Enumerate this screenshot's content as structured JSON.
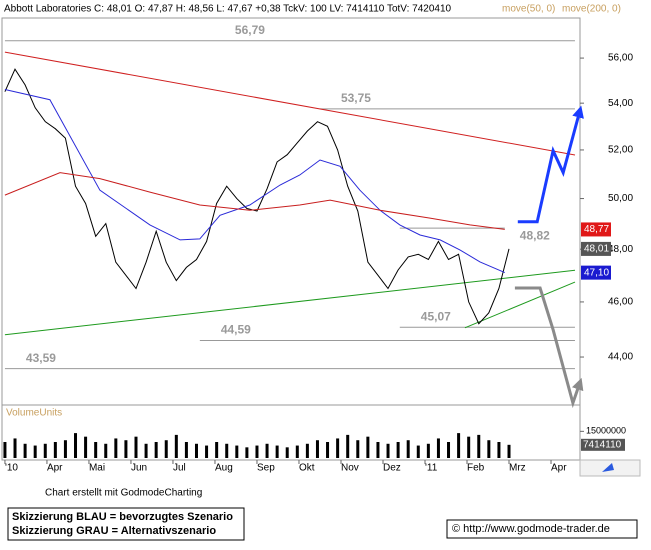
{
  "chart_data": {
    "type": "line",
    "title": "Abbott Laboratories C: 48,01 O: 47,87 H: 48,56 L: 47,67 +0,38 TckV: 100 LV: 7414110 TotV: 7420410",
    "log_scale": true,
    "xlim": [
      -0.07,
      13.69
    ],
    "xticks": [
      {
        "value": 0,
        "label": "'10"
      },
      {
        "value": 1,
        "label": "Apr"
      },
      {
        "value": 2,
        "label": "Mai"
      },
      {
        "value": 3,
        "label": "Jun"
      },
      {
        "value": 4,
        "label": "Jul"
      },
      {
        "value": 5,
        "label": "Aug"
      },
      {
        "value": 6,
        "label": "Sep"
      },
      {
        "value": 7,
        "label": "Okt"
      },
      {
        "value": 8,
        "label": "Nov"
      },
      {
        "value": 9,
        "label": "Dez"
      },
      {
        "value": 10,
        "label": "'11"
      },
      {
        "value": 11,
        "label": "Feb"
      },
      {
        "value": 12,
        "label": "Mrz"
      },
      {
        "value": 13,
        "label": "Apr"
      }
    ],
    "ylim": [
      42.33,
      57.84
    ],
    "yticks": [
      {
        "value": 44,
        "label": "44,00"
      },
      {
        "value": 46,
        "label": "46,00"
      },
      {
        "value": 48,
        "label": "48,00"
      },
      {
        "value": 50,
        "label": "50,00"
      },
      {
        "value": 52,
        "label": "52,00"
      },
      {
        "value": 54,
        "label": "54,00"
      },
      {
        "value": 56,
        "label": "56,00"
      }
    ],
    "series": [
      {
        "color": "#000000",
        "x": [
          0,
          0.24,
          0.48,
          0.72,
          0.96,
          1.2,
          1.44,
          1.68,
          1.92,
          2.16,
          2.4,
          2.64,
          2.88,
          3.12,
          3.36,
          3.6,
          3.84,
          4.08,
          4.32,
          4.56,
          4.8,
          5.04,
          5.28,
          5.52,
          5.76,
          6,
          6.24,
          6.48,
          6.72,
          6.96,
          7.2,
          7.44,
          7.68,
          7.92,
          8.16,
          8.4,
          8.64,
          8.88,
          9.12,
          9.36,
          9.6,
          9.84,
          10.08,
          10.32,
          10.56,
          10.8,
          11.04,
          11.28,
          11.52,
          11.76,
          12
        ],
        "values": [
          54.5,
          55.5,
          54.8,
          53.8,
          53.2,
          52.9,
          52.5,
          50.5,
          49.8,
          48.5,
          49.0,
          47.5,
          47.0,
          46.5,
          47.5,
          48.7,
          47.5,
          46.8,
          47.3,
          47.6,
          48.3,
          49.8,
          50.5,
          50.0,
          49.6,
          49.5,
          50.4,
          51.5,
          51.8,
          52.3,
          52.8,
          53.2,
          53.0,
          52.0,
          50.5,
          49.5,
          47.5,
          47.0,
          46.5,
          47.2,
          47.7,
          47.8,
          47.6,
          48.3,
          47.6,
          47.8,
          46.0,
          45.2,
          45.6,
          46.5,
          48.01
        ]
      },
      {
        "name": "move(50, 0)",
        "color": "#2a2ad8",
        "x": [
          0,
          1.07,
          2.26,
          3.45,
          4.17,
          4.64,
          5.12,
          5.83,
          6.55,
          7.02,
          7.5,
          7.98,
          8.45,
          8.93,
          9.4,
          9.88,
          10.36,
          10.83,
          11.31,
          11.9
        ],
        "values": [
          54.6,
          54.15,
          50.34,
          48.95,
          48.36,
          48.4,
          49.33,
          49.74,
          50.55,
          50.96,
          51.58,
          51.32,
          50.34,
          49.53,
          48.95,
          48.55,
          48.36,
          47.97,
          47.51,
          47.1
        ]
      },
      {
        "name": "move(200, 0)",
        "color": "#c81e1e",
        "x": [
          0,
          1.31,
          2.26,
          3.45,
          4.64,
          5.83,
          7.02,
          7.74,
          8.93,
          10.12,
          11.07,
          11.9
        ],
        "values": [
          50.14,
          51.06,
          50.81,
          50.26,
          49.74,
          49.53,
          49.74,
          49.94,
          49.53,
          49.22,
          48.95,
          48.77
        ]
      }
    ],
    "levels": [
      {
        "value": 56.79,
        "label": "56,79",
        "x": [
          0,
          13.57
        ]
      },
      {
        "value": 53.75,
        "label": "53,75",
        "x": [
          7.5,
          13.57
        ]
      },
      {
        "value": 48.82,
        "label": "48,82",
        "x": [
          9.4,
          11.9
        ]
      },
      {
        "value": 45.07,
        "label": "45,07",
        "x": [
          9.4,
          13.57
        ]
      },
      {
        "value": 44.59,
        "label": "44,59",
        "x": [
          4.64,
          13.57
        ]
      },
      {
        "value": 43.59,
        "label": "43,59",
        "x": [
          0,
          13.57
        ]
      }
    ],
    "trendlines": [
      {
        "color": "#d02020",
        "x": [
          0,
          13.57
        ],
        "values": [
          56.27,
          51.79
        ]
      },
      {
        "color": "#1e9a1e",
        "x": [
          0,
          13.57
        ],
        "values": [
          44.8,
          47.19
        ]
      },
      {
        "color": "#1e9a1e",
        "x": [
          10.95,
          13.57
        ],
        "values": [
          45.05,
          46.74
        ]
      }
    ],
    "scenarios": [
      {
        "label": "Skizzierung BLAU = bevorzugtes Szenario",
        "color": "#1a3cff",
        "x": [
          12.21,
          12.67,
          13.05,
          13.29,
          13.69
        ],
        "values": [
          49.07,
          49.07,
          51.97,
          51.06,
          53.69
        ]
      },
      {
        "label": "Skizzierung GRAU = Alternativszenario",
        "color": "#8a8a8a",
        "x": [
          12.14,
          12.74,
          13.05,
          13.52,
          13.69
        ],
        "values": [
          46.52,
          46.52,
          44.98,
          42.4,
          43.11
        ]
      }
    ],
    "price_tags": [
      {
        "value": 48.77,
        "label": "48,77",
        "color": "#e01818"
      },
      {
        "value": 48.01,
        "label": "48,01",
        "color": "#555555"
      },
      {
        "value": 47.1,
        "label": "47,10",
        "color": "#1a1ad0"
      }
    ],
    "volume": {
      "label": "VolumeUnits",
      "color": "#000000",
      "ylim": [
        0,
        27000000
      ],
      "yticks": [
        15000000
      ],
      "values": [
        9000000,
        11000000,
        8000000,
        7000000,
        8000000,
        9000000,
        10000000,
        14000000,
        12000000,
        9000000,
        8000000,
        11000000,
        10000000,
        12000000,
        8000000,
        9000000,
        10000000,
        13000000,
        9000000,
        8000000,
        7000000,
        9000000,
        8000000,
        7000000,
        6000000,
        7000000,
        8000000,
        7000000,
        6000000,
        7000000,
        8000000,
        10000000,
        9000000,
        11000000,
        13000000,
        10000000,
        12000000,
        9000000,
        8000000,
        9000000,
        10000000,
        7000000,
        8000000,
        11000000,
        9000000,
        14000000,
        12000000,
        13000000,
        10000000,
        9000000,
        7414110
      ],
      "last": 7414110
    },
    "credit": "Chart erstellt mit GodmodeCharting",
    "copyright": "© http://www.godmode-trader.de"
  }
}
